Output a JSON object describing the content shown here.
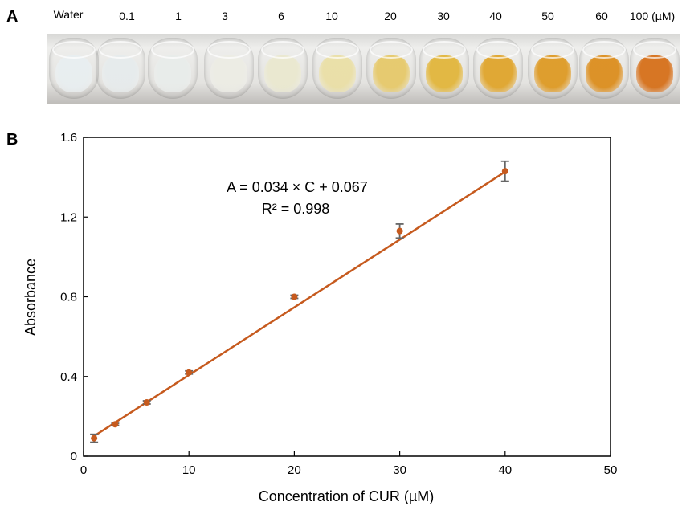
{
  "panel_a": {
    "letter": "A",
    "labels": [
      "Water",
      "0.1",
      "1",
      "3",
      "6",
      "10",
      "20",
      "30",
      "40",
      "50",
      "60",
      "100 (µM)"
    ],
    "vial_colors": [
      "#e8eef0",
      "#e6ebec",
      "#e8ecea",
      "#ecece4",
      "#eae8cf",
      "#eadfa6",
      "#e6c96a",
      "#e2b63c",
      "#e0a52c",
      "#de9a24",
      "#dc8e1e",
      "#d6701a"
    ]
  },
  "panel_b": {
    "letter": "B",
    "equation": "A = 0.034 × C + 0.067",
    "r_squared": "R² = 0.998"
  },
  "chart_data": {
    "type": "scatter",
    "xlabel": "Concentration of CUR (µM)",
    "ylabel": "Absorbance",
    "xlim": [
      0,
      50
    ],
    "ylim": [
      0,
      1.6
    ],
    "xticks": [
      "0",
      "10",
      "20",
      "30",
      "40",
      "50"
    ],
    "yticks": [
      "0",
      "0.4",
      "0.8",
      "1.2",
      "1.6"
    ],
    "grid": false,
    "series": [
      {
        "x": [
          1,
          3,
          6,
          10,
          20,
          30,
          40
        ],
        "y": [
          0.09,
          0.16,
          0.27,
          0.42,
          0.8,
          1.13,
          1.43
        ],
        "error": [
          0.02,
          0.005,
          0.008,
          0.008,
          0.008,
          0.035,
          0.05
        ],
        "color": "#c65a1e"
      }
    ],
    "trendline": {
      "slope": 0.034,
      "intercept": 0.067,
      "x_range": [
        1,
        40
      ],
      "color": "#c65a1e"
    },
    "errorbar_color": "#666666"
  }
}
